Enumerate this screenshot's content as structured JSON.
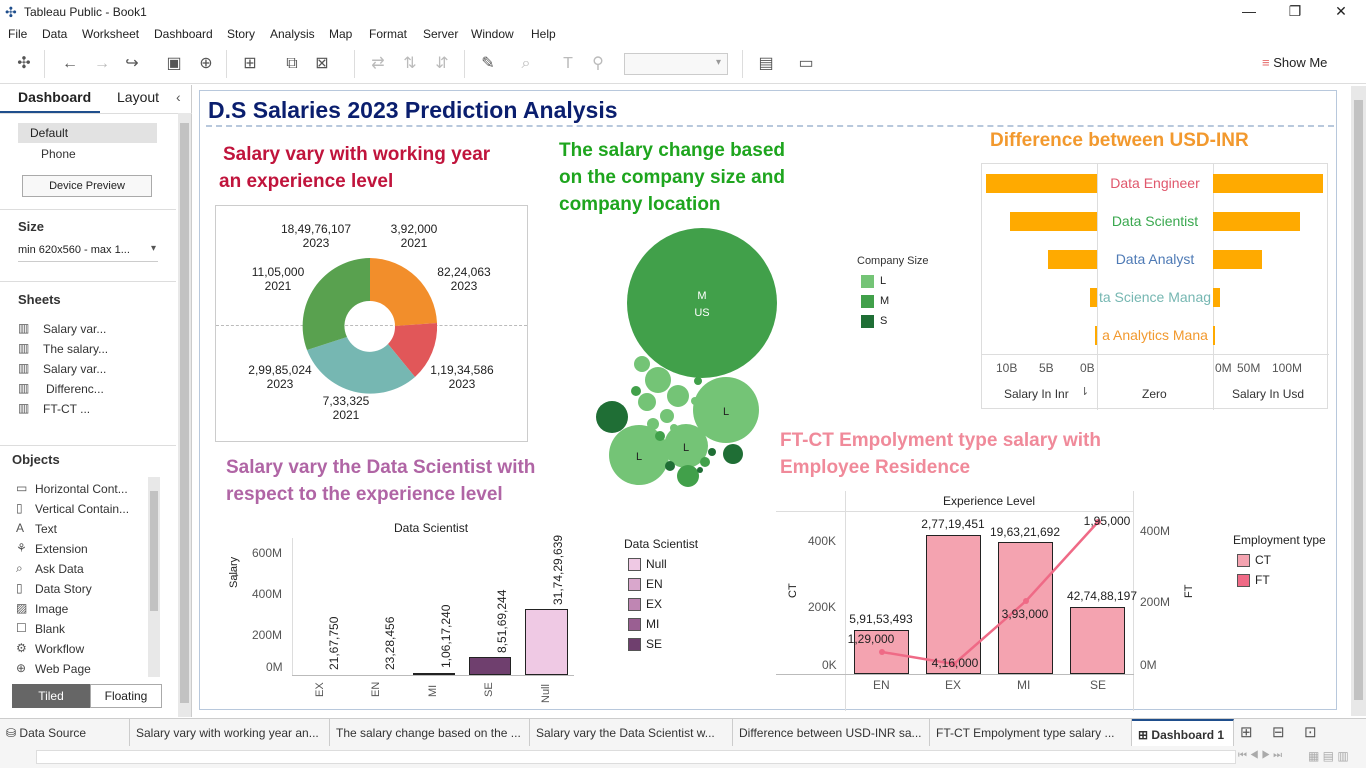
{
  "app": {
    "title": "Tableau Public - Book1"
  },
  "menu": [
    "File",
    "Data",
    "Worksheet",
    "Dashboard",
    "Story",
    "Analysis",
    "Map",
    "Format",
    "Server",
    "Window",
    "Help"
  ],
  "toolbar": {
    "show_me": "Show Me"
  },
  "left_panel": {
    "tabs": [
      "Dashboard",
      "Layout"
    ],
    "device": {
      "default": "Default",
      "phone": "Phone",
      "preview_button": "Device Preview"
    },
    "size": {
      "heading": "Size",
      "value": "min 620x560 - max 1..."
    },
    "sheets": {
      "heading": "Sheets",
      "items": [
        "Salary var...",
        "The salary...",
        "Salary var...",
        "Differenc...",
        "FT-CT ..."
      ]
    },
    "objects": {
      "heading": "Objects",
      "items": [
        "Horizontal Cont...",
        "Vertical Contain...",
        "Text",
        "Extension",
        "Ask Data",
        "Data Story",
        "Image",
        "Blank",
        "Workflow",
        "Web Page"
      ]
    },
    "tiled": "Tiled",
    "floating": "Floating"
  },
  "dashboard": {
    "title": "D.S Salaries 2023 Prediction Analysis",
    "donut": {
      "title_line1": "Salary vary with working year",
      "title_line2": "an experience level",
      "labels": [
        {
          "v": "18,49,76,107",
          "y": "2023"
        },
        {
          "v": "3,92,000",
          "y": "2021"
        },
        {
          "v": "82,24,063",
          "y": "2023"
        },
        {
          "v": "11,05,000",
          "y": "2021"
        },
        {
          "v": "1,19,34,586",
          "y": "2023"
        },
        {
          "v": "2,99,85,024",
          "y": "2023"
        },
        {
          "v": "7,33,325",
          "y": "2021"
        }
      ],
      "colors": {
        "orange": "#f28e2b",
        "red": "#e15759",
        "teal": "#76b7b2",
        "green": "#59a14f"
      }
    },
    "bubble": {
      "title_line1": "The salary change based",
      "title_line2": "on the company size and",
      "title_line3": "company location",
      "big_l1": "M",
      "big_l2": "US",
      "labels": [
        "L",
        "L",
        "L"
      ],
      "legend": {
        "title": "Company Size",
        "items": [
          {
            "k": "L",
            "c": "#74c476"
          },
          {
            "k": "M",
            "c": "#41a04a"
          },
          {
            "k": "S",
            "c": "#1f6e35"
          }
        ]
      }
    },
    "diff": {
      "title": "Difference between USD-INR",
      "rows": [
        "Data Engineer",
        "Data Scientist",
        "Data Analyst",
        "ta Science Manag",
        "a Analytics Mana"
      ],
      "inr_ticks": [
        "10B",
        "5B",
        "0B"
      ],
      "usd_ticks": [
        "0M",
        "50M",
        "100M"
      ],
      "col_inr": "Salary In Inr",
      "col_zero": "Zero",
      "col_usd": "Salary In Usd",
      "bar_color": "#ffaa00"
    },
    "ds": {
      "title_line1": "Salary vary the Data Scientist with",
      "title_line2": "respect to the experience level",
      "chart_title": "Data Scientist",
      "ylabel": "Salary",
      "yticks": [
        "600M",
        "400M",
        "200M",
        "0M"
      ],
      "categories": [
        "EX",
        "EN",
        "MI",
        "SE",
        "Null"
      ],
      "values": [
        "21,67,750",
        "23,28,456",
        "1,06,17,240",
        "8,51,69,244",
        "31,74,29,639"
      ],
      "legend": {
        "title": "Data Scientist",
        "items": [
          {
            "k": "Null",
            "c": "#efc9e4"
          },
          {
            "k": "EN",
            "c": "#d9a7cc"
          },
          {
            "k": "EX",
            "c": "#bf86b3"
          },
          {
            "k": "MI",
            "c": "#9a5f92"
          },
          {
            "k": "SE",
            "c": "#6f3f6e"
          }
        ]
      }
    },
    "ftct": {
      "title_line1": "FT-CT Empolyment  type salary with",
      "title_line2": "Employee Residence",
      "chart_title": "Experience Level",
      "ylabel_left": "CT",
      "ylabel_right": "FT",
      "left_ticks": [
        "400K",
        "200K",
        "0K"
      ],
      "right_ticks": [
        "400M",
        "200M",
        "0M"
      ],
      "categories": [
        "EN",
        "EX",
        "MI",
        "SE"
      ],
      "bar_values": [
        "5,91,53,493",
        "2,77,19,451",
        "19,63,21,692",
        "42,74,88,197"
      ],
      "line_values": [
        "1,29,000",
        "4,16,000",
        "3,93,000",
        "1,95,000"
      ],
      "legend": {
        "title": "Employment type",
        "items": [
          {
            "k": "CT",
            "c": "#f4a3b0"
          },
          {
            "k": "FT",
            "c": "#ef6a86"
          }
        ]
      }
    }
  },
  "tabs": [
    "Data Source",
    "Salary vary with working year an...",
    "The salary change based on the ...",
    "Salary vary  the Data Scientist w...",
    "Difference between USD-INR sa...",
    "FT-CT Empolyment  type salary ...",
    "Dashboard 1"
  ]
}
